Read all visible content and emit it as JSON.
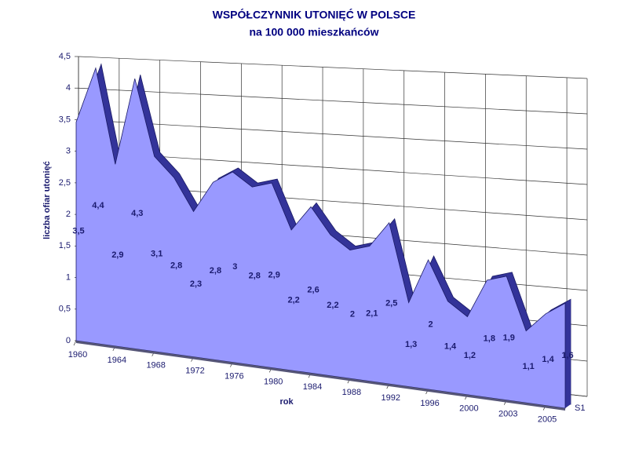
{
  "chart_data": {
    "type": "area3d",
    "title": "WSPÓŁCZYNNIK UTONIĘĆ W POLSCE",
    "subtitle": "na 100 000 mieszkańców",
    "x_label": "rok",
    "y_label": "liczba ofiar utonięć",
    "categories": [
      "1960",
      null,
      "1964",
      null,
      "1968",
      null,
      "1972",
      null,
      "1976",
      null,
      "1980",
      null,
      "1984",
      null,
      "1988",
      null,
      "1992",
      null,
      "1996",
      null,
      "2000",
      null,
      "2003",
      null,
      "2005",
      null
    ],
    "series": [
      {
        "name": "S1",
        "color": "#9999ff",
        "edge_color": "#333399",
        "values": [
          3.5,
          4.4,
          2.9,
          4.3,
          3.1,
          2.8,
          2.3,
          2.8,
          3,
          2.8,
          2.9,
          2.2,
          2.6,
          2.2,
          2,
          2.1,
          2.5,
          1.3,
          2,
          1.4,
          1.2,
          1.8,
          1.9,
          1.1,
          1.4,
          1.6
        ],
        "value_labels": [
          "3,5",
          "4,4",
          "2,9",
          "4,3",
          "3,1",
          "2,8",
          "2,3",
          "2,8",
          "3",
          "2,8",
          "2,9",
          "2,2",
          "2,6",
          "2,2",
          "2",
          "2,1",
          "2,5",
          "1,3",
          "2",
          "1,4",
          "1,2",
          "1,8",
          "1,9",
          "1,1",
          "1,4",
          "1,6"
        ]
      }
    ],
    "ylim": [
      0,
      4.5
    ],
    "yticks": [
      0,
      {
        "value": 0.5,
        "label": "0,5"
      },
      1,
      {
        "value": 1.5,
        "label": "1,5"
      },
      2,
      {
        "value": 2.5,
        "label": "2,5"
      },
      3,
      {
        "value": 3.5,
        "label": "3,5"
      },
      4,
      {
        "value": 4.5,
        "label": "4,5"
      }
    ],
    "grid": true
  }
}
